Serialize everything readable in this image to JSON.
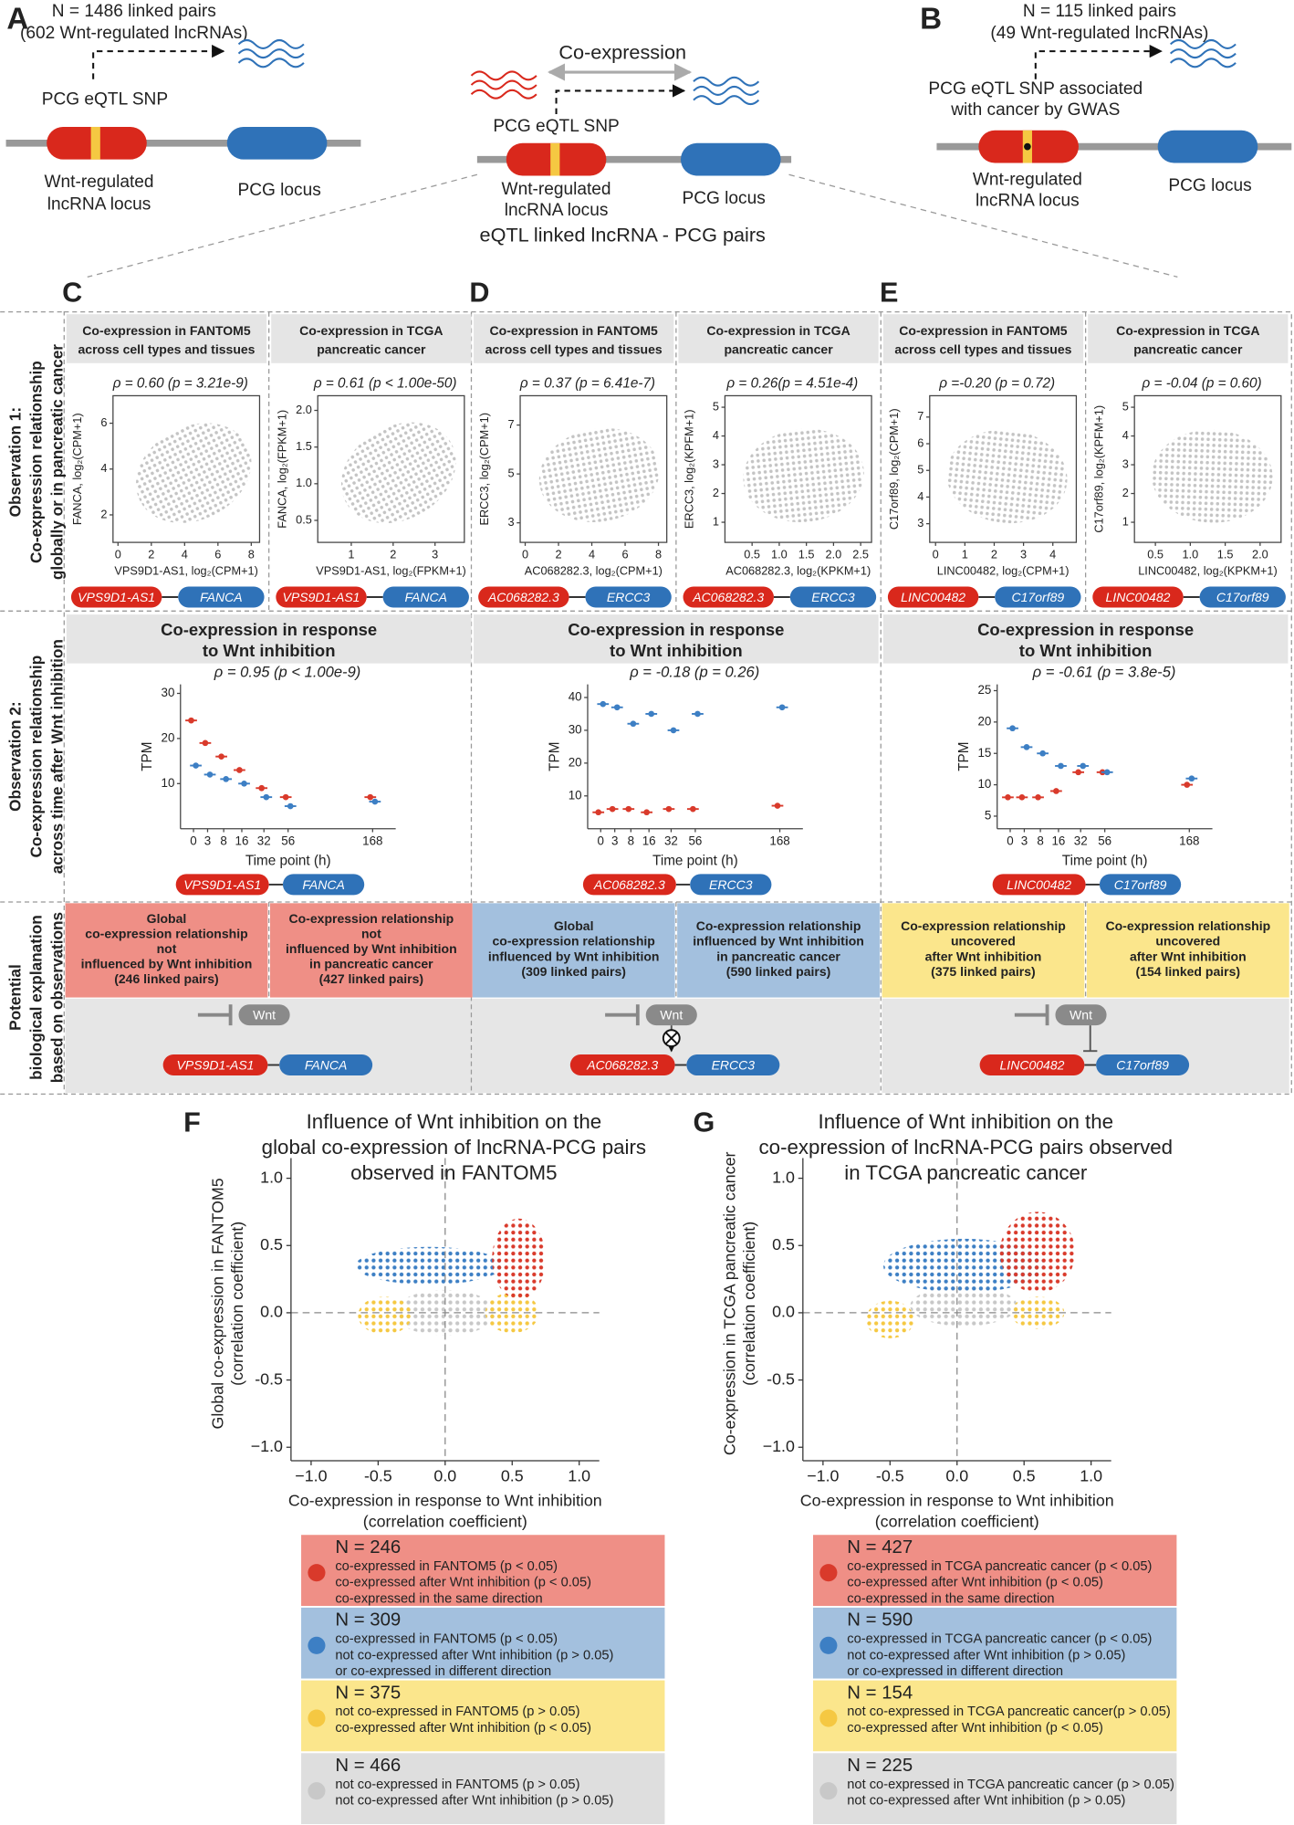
{
  "panel_a": {
    "label": "A",
    "count": "N = 1486 linked pairs",
    "note": "(602 Wnt-regulated lncRNAs)",
    "snp": [
      "PCG eQTL SNP"
    ],
    "lnc_locus": [
      "Wnt-regulated",
      "lncRNA locus"
    ],
    "pcg_locus": "PCG locus"
  },
  "panel_center": {
    "coexpression": "Co-expression",
    "snp": [
      "PCG eQTL SNP"
    ],
    "lnc_locus": [
      "Wnt-regulated",
      "lncRNA locus"
    ],
    "pcg_locus": "PCG locus",
    "caption": "eQTL linked lncRNA - PCG pairs"
  },
  "panel_b": {
    "label": "B",
    "count": "N = 115 linked pairs",
    "note": "(49 Wnt-regulated lncRNAs)",
    "snp": [
      "PCG eQTL SNP associated",
      "with cancer by GWAS"
    ],
    "lnc_locus": [
      "Wnt-regulated",
      "lncRNA locus"
    ],
    "pcg_locus": "PCG locus"
  },
  "row_labels": [
    [
      "Observation 1:",
      "Co-expression relationship",
      "globally or in pancreatic cancer"
    ],
    [
      "Observation 2:",
      "Co-expression relationship",
      "across time after Wnt inhibition"
    ],
    [
      "Potential",
      "biological explanation",
      "based on observations"
    ]
  ],
  "columns": [
    {
      "label": "C",
      "lnc": "VPS9D1-AS1",
      "pcg": "FANCA",
      "scatters": [
        {
          "type": "scatter",
          "title": [
            "Co-expression in FANTOM5",
            "across cell types and tissues"
          ],
          "stat": "ρ = 0.60 (p = 3.21e-9)",
          "ylabel": "FANCA, log₂(CPM+1)",
          "xlabel": "VPS9D1-AS1, log₂(CPM+1)",
          "xlim": [
            -0.3,
            8.5
          ],
          "ylim": [
            0.8,
            7.2
          ],
          "xticks": [
            0,
            2,
            4,
            6,
            8
          ],
          "yticks": [
            2,
            4,
            6
          ]
        },
        {
          "type": "scatter",
          "title": [
            "Co-expression in TCGA",
            "pancreatic cancer"
          ],
          "stat": "ρ = 0.61 (p < 1.00e-50)",
          "ylabel": "FANCA, log₂(FPKM+1)",
          "xlabel": "VPS9D1-AS1, log₂(FPKM+1)",
          "xlim": [
            0.2,
            3.7
          ],
          "ylim": [
            0.2,
            2.2
          ],
          "xticks": [
            1,
            2,
            3
          ],
          "yticks": [
            0.5,
            {
              "value": 1,
              "label": "1.0"
            },
            1.5,
            {
              "value": 2,
              "label": "2.0"
            }
          ]
        }
      ],
      "timecourse": {
        "type": "box",
        "title": [
          "Co-expression in response",
          "to Wnt inhibition"
        ],
        "stat": "ρ = 0.95 (p < 1.00e-9)",
        "ylabel": "TPM",
        "xlabel": "Time point (h)",
        "categories": [
          "0",
          "3",
          "8",
          "16",
          "32",
          "56",
          "168"
        ],
        "ylim": [
          0,
          32
        ],
        "yticks": [
          10,
          20,
          30
        ],
        "series": [
          {
            "color": "#d93a2b",
            "values": [
              24,
              19,
              16,
              13,
              9,
              7,
              7
            ]
          },
          {
            "color": "#3d7fc4",
            "values": [
              14,
              12,
              11,
              10,
              7,
              5,
              6
            ]
          }
        ]
      },
      "explanations": [
        {
          "color": "#ef8f86",
          "lines": [
            "Global",
            "co-expression relationship",
            "not",
            "influenced by Wnt inhibition",
            "(246 linked pairs)"
          ]
        },
        {
          "color": "#ef8f86",
          "lines": [
            "Co-expression relationship",
            "not",
            "influenced by Wnt inhibition",
            "in pancreatic cancer",
            "(427 linked pairs)"
          ]
        }
      ],
      "diagram": {
        "wnt": "Wnt"
      }
    },
    {
      "label": "D",
      "lnc": "AC068282.3",
      "pcg": "ERCC3",
      "scatters": [
        {
          "type": "scatter",
          "title": [
            "Co-expression in FANTOM5",
            "across cell types and tissues"
          ],
          "stat": "ρ = 0.37 (p = 6.41e-7)",
          "ylabel": "ERCC3, log₂(CPM+1)",
          "xlabel": "AC068282.3, log₂(CPM+1)",
          "xlim": [
            -0.3,
            8.5
          ],
          "ylim": [
            2.2,
            8.2
          ],
          "xticks": [
            0,
            2,
            4,
            6,
            8
          ],
          "yticks": [
            3,
            5,
            7
          ]
        },
        {
          "type": "scatter",
          "title": [
            "Co-expression in TCGA",
            "pancreatic cancer"
          ],
          "stat": "ρ = 0.26(p = 4.51e-4)",
          "ylabel": "ERCC3, log₂(KPFM+1)",
          "xlabel": "AC068282.3, log₂(KPKM+1)",
          "xlim": [
            0,
            2.7
          ],
          "ylim": [
            0.3,
            5.4
          ],
          "xticks": [
            0.5,
            {
              "value": 1,
              "label": "1.0"
            },
            1.5,
            {
              "value": 2,
              "label": "2.0"
            },
            2.5
          ],
          "yticks": [
            1,
            2,
            3,
            4,
            5
          ]
        }
      ],
      "timecourse": {
        "type": "box",
        "title": [
          "Co-expression in response",
          "to Wnt inhibition"
        ],
        "stat": "ρ = -0.18 (p = 0.26)",
        "ylabel": "TPM",
        "xlabel": "Time point (h)",
        "categories": [
          "0",
          "3",
          "8",
          "16",
          "32",
          "56",
          "168"
        ],
        "ylim": [
          0,
          44
        ],
        "yticks": [
          10,
          20,
          30,
          40
        ],
        "series": [
          {
            "color": "#d93a2b",
            "values": [
              5,
              6,
              6,
              5,
              6,
              6,
              7
            ]
          },
          {
            "color": "#3d7fc4",
            "values": [
              38,
              37,
              32,
              35,
              30,
              35,
              37
            ]
          }
        ]
      },
      "explanations": [
        {
          "color": "#a3c0de",
          "lines": [
            "Global",
            "co-expression relationship",
            "influenced by Wnt inhibition",
            "(309 linked pairs)"
          ]
        },
        {
          "color": "#a3c0de",
          "lines": [
            "Co-expression relationship",
            "influenced by Wnt inhibition",
            "in pancreatic cancer",
            "(590 linked pairs)"
          ]
        }
      ],
      "diagram": {
        "wnt": "Wnt"
      }
    },
    {
      "label": "E",
      "lnc": "LINC00482",
      "pcg": "C17orf89",
      "scatters": [
        {
          "type": "scatter",
          "title": [
            "Co-expression in FANTOM5",
            "across cell types and tissues"
          ],
          "stat": "ρ =-0.20 (p = 0.72)",
          "ylabel": "C17orf89, log₂(CPM+1)",
          "xlabel": "LINC00482, log₂(CPM+1)",
          "xlim": [
            -0.2,
            4.8
          ],
          "ylim": [
            2.3,
            7.8
          ],
          "xticks": [
            0,
            1,
            2,
            3,
            4
          ],
          "yticks": [
            3,
            4,
            5,
            6,
            7
          ]
        },
        {
          "type": "scatter",
          "title": [
            "Co-expression in TCGA",
            "pancreatic cancer"
          ],
          "stat": "ρ = -0.04 (p = 0.60)",
          "ylabel": "C17orf89, log₂(KPFM+1)",
          "xlabel": "LINC00482, log₂(KPKM+1)",
          "xlim": [
            0.2,
            2.3
          ],
          "ylim": [
            0.3,
            5.4
          ],
          "xticks": [
            0.5,
            {
              "value": 1,
              "label": "1.0"
            },
            1.5,
            {
              "value": 2,
              "label": "2.0"
            }
          ],
          "yticks": [
            1,
            2,
            3,
            4,
            5
          ]
        }
      ],
      "timecourse": {
        "type": "box",
        "title": [
          "Co-expression in response",
          "to Wnt inhibition"
        ],
        "stat": "ρ = -0.61 (p = 3.8e-5)",
        "ylabel": "TPM",
        "xlabel": "Time point (h)",
        "categories": [
          "0",
          "3",
          "8",
          "16",
          "32",
          "56",
          "168"
        ],
        "ylim": [
          3,
          26
        ],
        "yticks": [
          5,
          10,
          15,
          20,
          25
        ],
        "series": [
          {
            "color": "#d93a2b",
            "values": [
              8,
              8,
              8,
              9,
              12,
              12,
              10
            ]
          },
          {
            "color": "#3d7fc4",
            "values": [
              19,
              16,
              15,
              13,
              13,
              12,
              11
            ]
          }
        ]
      },
      "explanations": [
        {
          "color": "#fbe68c",
          "lines": [
            "Co-expression relationship",
            "uncovered",
            "after Wnt inhibition",
            "(375 linked pairs)"
          ]
        },
        {
          "color": "#fbe68c",
          "lines": [
            "Co-expression relationship",
            "uncovered",
            "after Wnt inhibition",
            "(154 linked pairs)"
          ]
        }
      ],
      "diagram": {
        "wnt": "Wnt"
      }
    }
  ],
  "summary_charts": [
    {
      "type": "scatter",
      "label": "F",
      "title": [
        "Influence of Wnt inhibition on the",
        "global co-expression of lncRNA-PCG pairs",
        "observed in FANTOM5"
      ],
      "ylabel": [
        "Global co-expression in FANTOM5",
        "(correlation coefficient)"
      ],
      "xlabel": [
        "Co-expression in response to Wnt inhibition",
        "(correlation coefficient)"
      ],
      "xlim": [
        -1.15,
        1.15
      ],
      "ylim": [
        -1.1,
        1.15
      ],
      "xticks": [
        {
          "value": -1,
          "label": "−1.0"
        },
        -0.5,
        {
          "value": 0,
          "label": "0.0"
        },
        0.5,
        {
          "value": 1,
          "label": "1.0"
        }
      ],
      "yticks": [
        {
          "value": -1,
          "label": "−1.0"
        },
        -0.5,
        {
          "value": 0,
          "label": "0.0"
        },
        0.5,
        {
          "value": 1,
          "label": "1.0"
        }
      ],
      "legend": [
        {
          "color": "#d93a2b",
          "bg": "#ef8f86",
          "n": "N = 246",
          "lines": [
            "co-expressed in FANTOM5 (p < 0.05)",
            "co-expressed after Wnt inhibition (p < 0.05)",
            "co-expressed in the same direction"
          ]
        },
        {
          "color": "#3d7fc4",
          "bg": "#a3c0de",
          "n": "N = 309",
          "lines": [
            "co-expressed in FANTOM5 (p < 0.05)",
            "not co-expressed after Wnt inhibition (p > 0.05)",
            "or co-expressed in different direction"
          ]
        },
        {
          "color": "#f5c842",
          "bg": "#fbe68c",
          "n": "N = 375",
          "lines": [
            "not co-expressed in FANTOM5 (p > 0.05)",
            "co-expressed after Wnt inhibition (p < 0.05)"
          ]
        },
        {
          "color": "#c8c8c8",
          "bg": "#dedede",
          "n": "N = 466",
          "lines": [
            "not co-expressed in FANTOM5 (p > 0.05)",
            "not co-expressed after Wnt inhibition (p > 0.05)"
          ]
        }
      ]
    },
    {
      "type": "scatter",
      "label": "G",
      "title": [
        "Influence of Wnt inhibition on the",
        "co-expression of lncRNA-PCG pairs observed",
        "in TCGA pancreatic cancer"
      ],
      "ylabel": [
        "Co-expression in TCGA pancreatic cancer",
        "(correlation coefficient)"
      ],
      "xlabel": [
        "Co-expression in response to Wnt inhibition",
        "(correlation coefficient)"
      ],
      "xlim": [
        -1.15,
        1.15
      ],
      "ylim": [
        -1.1,
        1.15
      ],
      "xticks": [
        {
          "value": -1,
          "label": "−1.0"
        },
        -0.5,
        {
          "value": 0,
          "label": "0.0"
        },
        0.5,
        {
          "value": 1,
          "label": "1.0"
        }
      ],
      "yticks": [
        {
          "value": -1,
          "label": "−1.0"
        },
        -0.5,
        {
          "value": 0,
          "label": "0.0"
        },
        0.5,
        {
          "value": 1,
          "label": "1.0"
        }
      ],
      "legend": [
        {
          "color": "#d93a2b",
          "bg": "#ef8f86",
          "n": "N = 427",
          "lines": [
            "co-expressed in TCGA pancreatic cancer (p < 0.05)",
            "co-expressed after Wnt inhibition (p < 0.05)",
            "co-expressed in the same direction"
          ]
        },
        {
          "color": "#3d7fc4",
          "bg": "#a3c0de",
          "n": "N = 590",
          "lines": [
            "co-expressed in TCGA pancreatic cancer (p < 0.05)",
            "not co-expressed after Wnt inhibition (p > 0.05)",
            "or co-expressed in different direction"
          ]
        },
        {
          "color": "#f5c842",
          "bg": "#fbe68c",
          "n": "N = 154",
          "lines": [
            "not co-expressed in TCGA pancreatic cancer(p > 0.05)",
            "co-expressed after Wnt inhibition (p < 0.05)"
          ]
        },
        {
          "color": "#c8c8c8",
          "bg": "#dedede",
          "n": "N = 225",
          "lines": [
            "not co-expressed in TCGA pancreatic cancer (p > 0.05)",
            "not co-expressed after Wnt inhibition (p > 0.05)"
          ]
        }
      ]
    }
  ]
}
